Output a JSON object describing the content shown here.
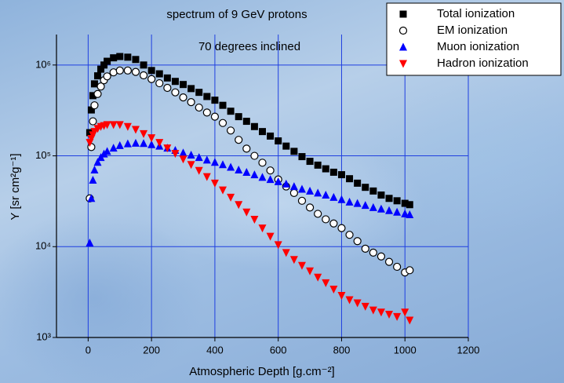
{
  "chart_data": {
    "type": "scatter",
    "title": "spectrum of 9 GeV protons",
    "annotation": "70 degrees inclined",
    "x_label": "Atmospheric Depth [g.cm⁻²]",
    "y_label": "Y [sr cm²g⁻¹]",
    "y_scale": "log",
    "grid": true,
    "legend": "top-right",
    "xlim": [
      -100,
      1200
    ],
    "xticks": [
      0,
      200,
      400,
      600,
      800,
      1000,
      1200
    ],
    "ylim": [
      1000,
      2000000
    ],
    "yticks": [
      {
        "value": 1000,
        "label": "10³"
      },
      {
        "value": 10000,
        "label": "10⁴"
      },
      {
        "value": 100000,
        "label": "10⁵"
      },
      {
        "value": 1000000,
        "label": "10⁶"
      }
    ],
    "x": [
      5,
      10,
      15,
      20,
      30,
      40,
      50,
      60,
      80,
      100,
      125,
      150,
      175,
      200,
      225,
      250,
      275,
      300,
      325,
      350,
      375,
      400,
      425,
      450,
      475,
      500,
      525,
      550,
      575,
      600,
      625,
      650,
      675,
      700,
      725,
      750,
      775,
      800,
      825,
      850,
      875,
      900,
      925,
      950,
      975,
      1000,
      1015
    ],
    "series": [
      {
        "name": "Total ionization",
        "color": "#000000",
        "marker": "square",
        "values": [
          180000,
          320000,
          460000,
          620000,
          760000,
          900000,
          1000000,
          1100000,
          1200000,
          1240000,
          1220000,
          1150000,
          1000000,
          870000,
          800000,
          720000,
          660000,
          610000,
          550000,
          500000,
          450000,
          410000,
          360000,
          310000,
          270000,
          240000,
          210000,
          185000,
          165000,
          146000,
          128000,
          112000,
          98000,
          87000,
          79000,
          72000,
          66000,
          62000,
          56000,
          50000,
          45000,
          41000,
          37000,
          34000,
          32000,
          30000,
          29000
        ]
      },
      {
        "name": "EM ionization",
        "color": "#000000",
        "marker": "circle",
        "values": [
          34000,
          125000,
          240000,
          360000,
          480000,
          580000,
          680000,
          750000,
          830000,
          870000,
          870000,
          840000,
          770000,
          700000,
          630000,
          560000,
          500000,
          440000,
          390000,
          340000,
          300000,
          270000,
          230000,
          190000,
          150000,
          120000,
          100000,
          84000,
          69000,
          55000,
          46000,
          39000,
          32000,
          27000,
          23000,
          20000,
          18000,
          16000,
          13500,
          11500,
          9500,
          8600,
          7800,
          6800,
          6000,
          5200,
          5500
        ]
      },
      {
        "name": "Muon ionization",
        "color": "#0000ff",
        "marker": "triangle-up",
        "values": [
          11000,
          34000,
          54000,
          70000,
          85000,
          96000,
          105000,
          112000,
          122000,
          130000,
          136000,
          138000,
          137000,
          133000,
          128000,
          122000,
          115000,
          108000,
          102000,
          96000,
          90000,
          85000,
          80000,
          75000,
          70000,
          66000,
          62000,
          58000,
          55000,
          52000,
          49000,
          46000,
          43000,
          41000,
          39000,
          37000,
          35000,
          33000,
          31000,
          30000,
          28500,
          27000,
          26000,
          25000,
          24000,
          23000,
          22500
        ]
      },
      {
        "name": "Hadron ionization",
        "color": "#ff0000",
        "marker": "triangle-down",
        "values": [
          140000,
          155000,
          170000,
          185000,
          200000,
          210000,
          215000,
          220000,
          220000,
          220000,
          210000,
          195000,
          175000,
          158000,
          140000,
          122000,
          106000,
          92000,
          80000,
          69000,
          59000,
          50000,
          42000,
          35000,
          29000,
          24000,
          20000,
          16000,
          13000,
          10500,
          8600,
          7200,
          6200,
          5400,
          4600,
          4000,
          3400,
          2900,
          2600,
          2400,
          2200,
          2000,
          1900,
          1800,
          1700,
          1900,
          1550
        ]
      }
    ]
  }
}
